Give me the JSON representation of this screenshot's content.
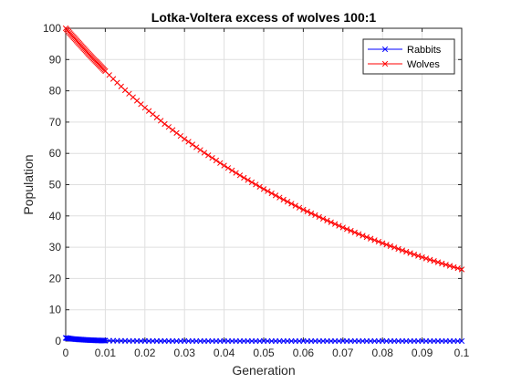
{
  "chart_data": {
    "type": "line",
    "title": "Lotka-Voltera excess of wolves 100:1",
    "xlabel": "Generation",
    "ylabel": "Population",
    "xlim": [
      0,
      0.1
    ],
    "ylim": [
      0,
      100
    ],
    "x_ticks": [
      "0",
      "0.01",
      "0.02",
      "0.03",
      "0.04",
      "0.05",
      "0.06",
      "0.07",
      "0.08",
      "0.09",
      "0.1"
    ],
    "y_ticks": [
      "0",
      "10",
      "20",
      "30",
      "40",
      "50",
      "60",
      "70",
      "80",
      "90",
      "100"
    ],
    "grid": true,
    "legend_position": "top-right",
    "marker": "x",
    "series": [
      {
        "name": "Rabbits",
        "color": "#0000FF",
        "x": [
          0,
          0.0005,
          0.001,
          0.0015,
          0.002,
          0.003,
          0.004,
          0.005,
          0.006,
          0.008,
          0.01,
          0.012,
          0.015,
          0.02,
          0.025,
          0.03,
          0.035,
          0.04,
          0.045,
          0.05,
          0.055,
          0.06,
          0.065,
          0.07,
          0.075,
          0.08,
          0.085,
          0.09,
          0.095,
          0.1
        ],
        "values": [
          1,
          0.9,
          0.8,
          0.72,
          0.65,
          0.55,
          0.45,
          0.38,
          0.3,
          0.2,
          0.14,
          0.09,
          0.05,
          0.02,
          0.01,
          0,
          0,
          0,
          0,
          0,
          0,
          0,
          0,
          0,
          0,
          0,
          0,
          0,
          0,
          0
        ]
      },
      {
        "name": "Wolves",
        "color": "#FF0000",
        "x": [
          0,
          0.0005,
          0.001,
          0.0015,
          0.002,
          0.003,
          0.004,
          0.005,
          0.006,
          0.008,
          0.01,
          0.012,
          0.015,
          0.02,
          0.025,
          0.03,
          0.035,
          0.04,
          0.045,
          0.05,
          0.055,
          0.06,
          0.065,
          0.07,
          0.075,
          0.08,
          0.085,
          0.09,
          0.095,
          0.1
        ],
        "values": [
          100,
          99.3,
          98.5,
          97.8,
          97.1,
          95.7,
          94.3,
          92.9,
          91.5,
          88.9,
          86.3,
          83.8,
          80.2,
          74.6,
          69.4,
          64.6,
          60.2,
          56.1,
          52.2,
          48.6,
          45.2,
          42.0,
          39.1,
          36.3,
          33.7,
          31.3,
          29.0,
          26.8,
          24.8,
          22.9
        ]
      }
    ]
  }
}
